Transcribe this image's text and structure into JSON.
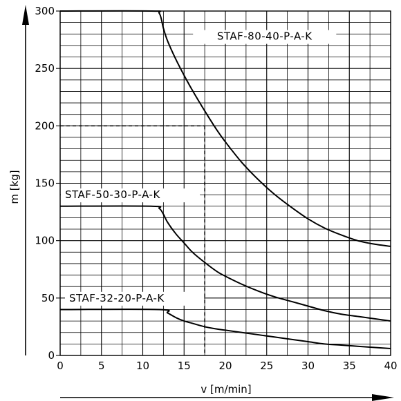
{
  "chart_data": {
    "type": "line",
    "title": "",
    "xlabel": "v [m/min]",
    "ylabel": "m [kg]",
    "xlim": [
      0,
      40
    ],
    "ylim": [
      0,
      300
    ],
    "x_ticks": [
      "0",
      "5",
      "10",
      "15",
      "20",
      "25",
      "30",
      "35",
      "40"
    ],
    "y_ticks": [
      "0",
      "50",
      "100",
      "150",
      "200",
      "250",
      "300"
    ],
    "grid": true,
    "series": [
      {
        "name": "STAF-80-40-P-A-K",
        "x": [
          0,
          11,
          12,
          12.5,
          13,
          14,
          15,
          16,
          17.5,
          19,
          20,
          22,
          24,
          26,
          28,
          30,
          32,
          34,
          36,
          38,
          40
        ],
        "y": [
          300,
          300,
          298,
          285,
          274,
          258,
          244,
          231,
          213,
          196,
          186,
          168,
          153,
          140,
          129,
          119,
          111,
          105,
          100,
          97,
          95
        ]
      },
      {
        "name": "STAF-50-30-P-A-K",
        "x": [
          0,
          11,
          12,
          12.5,
          13,
          14,
          15,
          16,
          17.5,
          19,
          20,
          22,
          24,
          26,
          28,
          30,
          32,
          34,
          36,
          38,
          40
        ],
        "y": [
          130,
          130,
          128,
          123,
          116,
          106,
          98,
          90,
          81,
          73,
          69,
          62,
          56,
          51,
          47,
          43,
          39,
          36,
          34,
          32,
          30
        ]
      },
      {
        "name": "STAF-32-20-P-A-K",
        "x": [
          0,
          12,
          13,
          14,
          15,
          16,
          17.5,
          19,
          20,
          22,
          24,
          26,
          28,
          30,
          32,
          34,
          36,
          38,
          40
        ],
        "y": [
          40,
          40,
          37,
          33,
          30,
          28,
          25,
          23,
          22,
          20,
          18,
          16,
          14,
          12,
          10,
          9,
          8,
          7,
          6
        ]
      }
    ],
    "reference": {
      "x": 17.5,
      "y": 200,
      "style": "dashed"
    }
  }
}
